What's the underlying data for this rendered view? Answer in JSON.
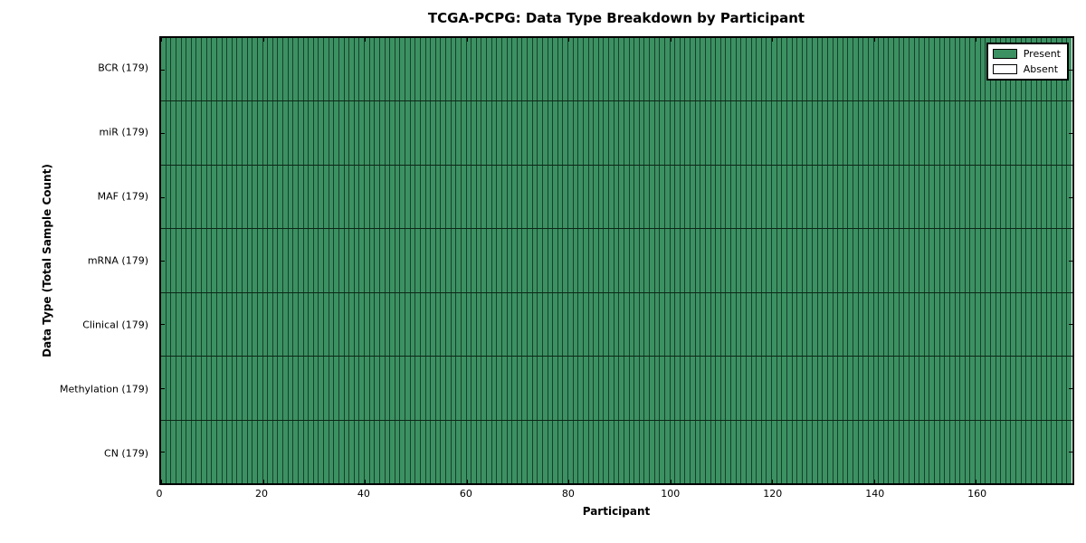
{
  "chart_data": {
    "type": "heatmap",
    "title": "TCGA-PCPG: Data Type Breakdown by Participant",
    "xlabel": "Participant",
    "ylabel": "Data Type (Total Sample Count)",
    "n_participants": 179,
    "xlim": [
      0,
      179
    ],
    "x_ticks": [
      0,
      20,
      40,
      60,
      80,
      100,
      120,
      140,
      160
    ],
    "rows": [
      {
        "name": "BCR",
        "label": "BCR (179)",
        "total_samples": 179,
        "present_count": 179,
        "absent_count": 0
      },
      {
        "name": "miR",
        "label": "miR (179)",
        "total_samples": 179,
        "present_count": 179,
        "absent_count": 0
      },
      {
        "name": "MAF",
        "label": "MAF (179)",
        "total_samples": 179,
        "present_count": 179,
        "absent_count": 0
      },
      {
        "name": "mRNA",
        "label": "mRNA (179)",
        "total_samples": 179,
        "present_count": 179,
        "absent_count": 0
      },
      {
        "name": "Clinical",
        "label": "Clinical (179)",
        "total_samples": 179,
        "present_count": 179,
        "absent_count": 0
      },
      {
        "name": "Methylation",
        "label": "Methylation (179)",
        "total_samples": 179,
        "present_count": 179,
        "absent_count": 0
      },
      {
        "name": "CN",
        "label": "CN (179)",
        "total_samples": 179,
        "present_count": 179,
        "absent_count": 0
      }
    ],
    "legend": {
      "position": "upper-right",
      "items": [
        {
          "label": "Present",
          "color": "#3c9162"
        },
        {
          "label": "Absent",
          "color": "#ffffff"
        }
      ]
    },
    "colors": {
      "present": "#3c9162",
      "absent": "#ffffff",
      "cell_border": "#17402a",
      "row_divider": "#0d2617",
      "frame": "#000000"
    },
    "grid": "cell-borders",
    "all_present": true
  }
}
